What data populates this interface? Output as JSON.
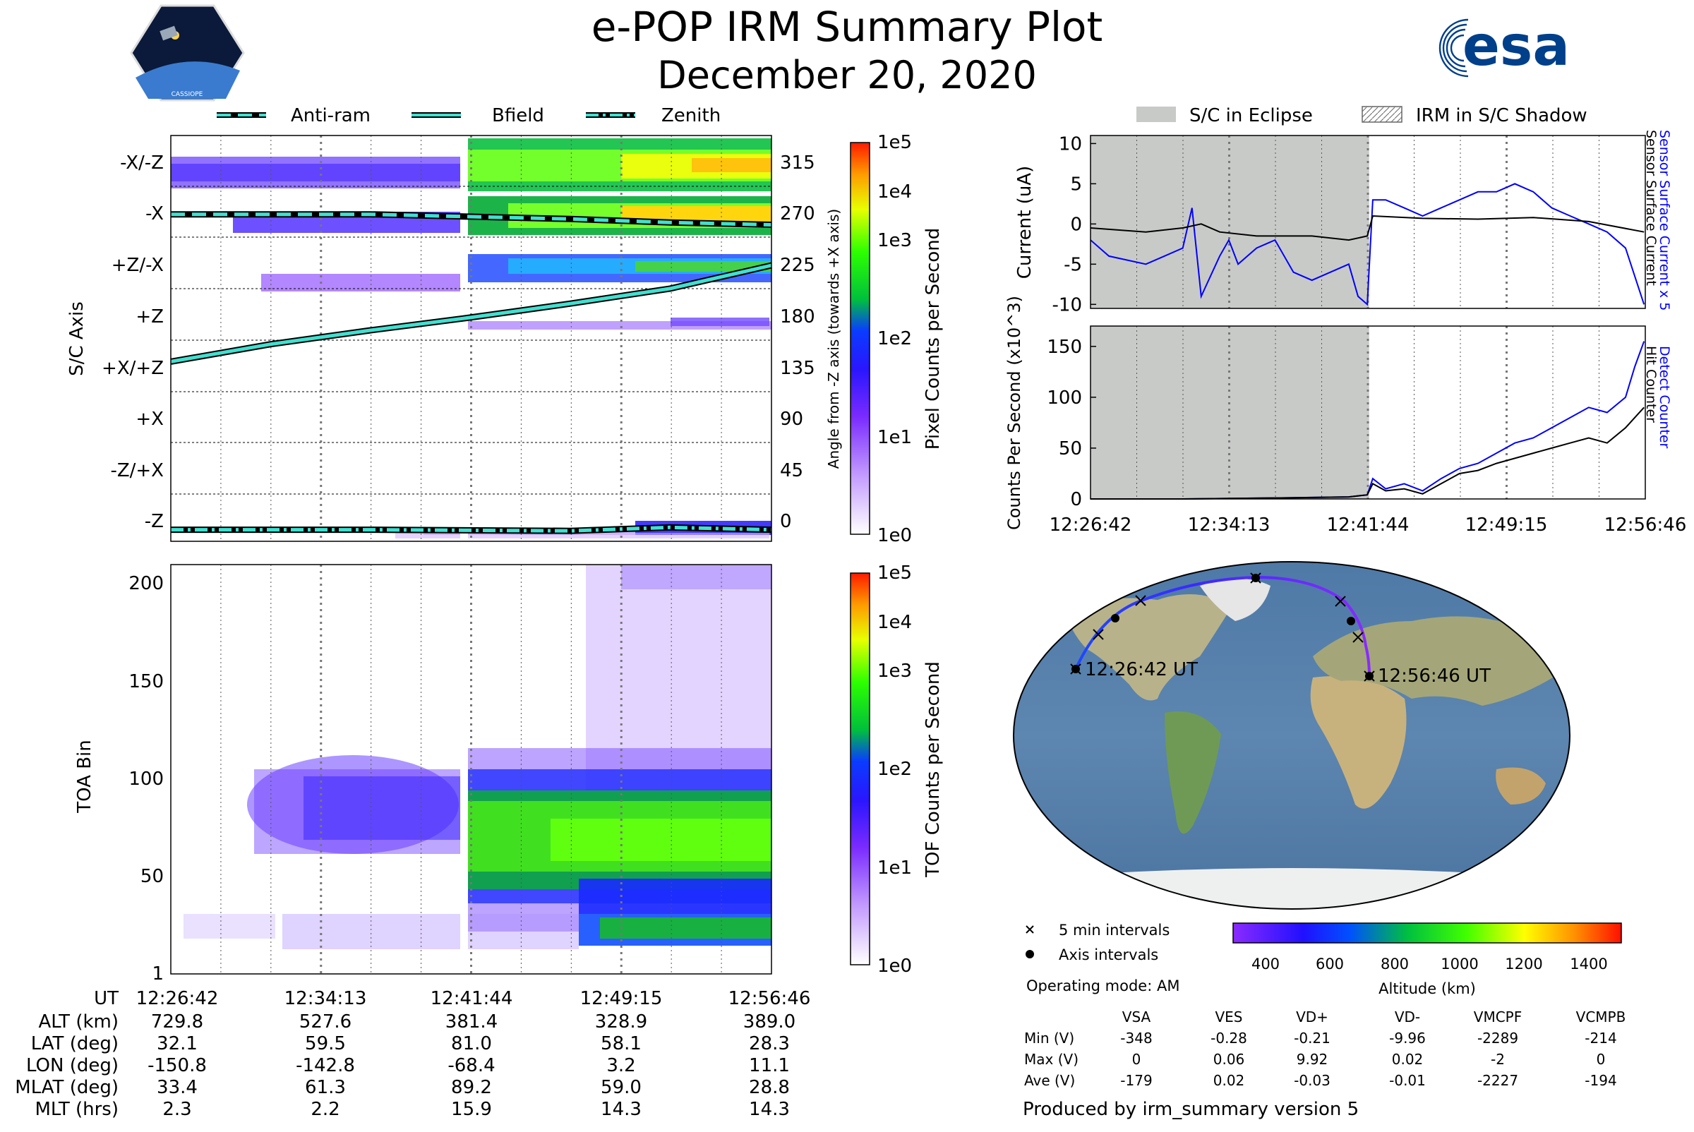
{
  "header": {
    "title": "e-POP IRM Summary Plot",
    "date": "December 20, 2020",
    "cassiope_logo_text": "CASSIOPE",
    "esa_logo_text": "esa"
  },
  "legend_top_left": [
    {
      "label": "Anti-ram",
      "style": "dashed"
    },
    {
      "label": "Bfield",
      "style": "solid"
    },
    {
      "label": "Zenith",
      "style": "dashdot"
    }
  ],
  "legend_top_right": [
    {
      "label": "S/C in Eclipse"
    },
    {
      "label": "IRM in S/C Shadow"
    }
  ],
  "colors": {
    "trace_fill": "#40e0d0",
    "eclipse_gray": "#c8cac8",
    "blue_series": "#0000ff",
    "black_series": "#000000",
    "track": "#6a2bff"
  },
  "colorbar_labels": {
    "pixel": "Pixel Counts per Second",
    "tof": "TOF Counts per Second",
    "ticks": [
      "1e0",
      "1e1",
      "1e2",
      "1e3",
      "1e4",
      "1e5"
    ]
  },
  "altitude_colorbar": {
    "label": "Altitude (km)",
    "ticks": [
      "400",
      "600",
      "800",
      "1000",
      "1200",
      "1400"
    ],
    "range": [
      300,
      1500
    ]
  },
  "time_ticks": [
    "12:26:42",
    "12:34:13",
    "12:41:44",
    "12:49:15",
    "12:56:46"
  ],
  "ephemeris": {
    "ut_label": "UT",
    "rows": [
      {
        "label": "ALT (km)",
        "values": [
          "729.8",
          "527.6",
          "381.4",
          "328.9",
          "389.0"
        ]
      },
      {
        "label": "LAT (deg)",
        "values": [
          "32.1",
          "59.5",
          "81.0",
          "58.1",
          "28.3"
        ]
      },
      {
        "label": "LON (deg)",
        "values": [
          "-150.8",
          "-142.8",
          "-68.4",
          "3.2",
          "11.1"
        ]
      },
      {
        "label": "MLAT (deg)",
        "values": [
          "33.4",
          "61.3",
          "89.2",
          "59.0",
          "28.8"
        ]
      },
      {
        "label": "MLT (hrs)",
        "values": [
          "2.3",
          "2.2",
          "15.9",
          "14.3",
          "14.3"
        ]
      }
    ]
  },
  "map": {
    "start_label": "12:26:42 UT",
    "end_label": "12:56:46 UT",
    "legend_5min": "5 min intervals",
    "legend_axis": "Axis intervals",
    "operating_mode": "Operating mode: AM"
  },
  "voltage_table": {
    "columns": [
      "VSA",
      "VES",
      "VD+",
      "VD-",
      "VMCPF",
      "VCMPB"
    ],
    "rows": [
      {
        "label": "Min (V)",
        "values": [
          "-348",
          "-0.28",
          "-0.21",
          "-9.96",
          "-2289",
          "-214"
        ]
      },
      {
        "label": "Max (V)",
        "values": [
          "0",
          "0.06",
          "9.92",
          "0.02",
          "-2",
          "0"
        ]
      },
      {
        "label": "Ave (V)",
        "values": [
          "-179",
          "0.02",
          "-0.03",
          "-0.01",
          "-2227",
          "-194"
        ]
      }
    ]
  },
  "footer": "Produced by irm_summary version 5",
  "chart_data": [
    {
      "type": "heatmap",
      "name": "pixel-spectrogram",
      "ylabel": "S/C Axis",
      "right_ylabel": "Angle from -Z axis (towards +X axis)",
      "categories": [
        "-X/-Z",
        "-X",
        "+Z/-X",
        "+Z",
        "+X/+Z",
        "+X",
        "-Z/+X",
        "-Z"
      ],
      "right_ticks": [
        315,
        270,
        225,
        180,
        135,
        90,
        45,
        0
      ],
      "ylim": [
        -10,
        340
      ],
      "xlim_minutes": [
        0,
        30.07
      ],
      "lines": [
        {
          "name": "Anti-ram",
          "t": [
            0,
            10,
            20,
            25,
            30.07
          ],
          "angle": [
            272,
            272,
            268,
            265,
            263
          ]
        },
        {
          "name": "Bfield",
          "t": [
            0,
            5,
            10,
            15,
            20,
            25,
            30.07
          ],
          "angle": [
            145,
            160,
            172,
            183,
            195,
            208,
            228
          ]
        },
        {
          "name": "Zenith",
          "t": [
            0,
            10,
            20,
            25,
            30.07
          ],
          "angle": [
            0,
            0,
            -1,
            2,
            0
          ]
        }
      ]
    },
    {
      "type": "heatmap",
      "name": "tof-spectrogram",
      "ylabel": "TOA Bin",
      "yticks": [
        1,
        50,
        100,
        150,
        200
      ],
      "ylim": [
        1,
        210
      ],
      "xlim_minutes": [
        0,
        30.07
      ]
    },
    {
      "type": "line",
      "name": "current",
      "ylabel": "Current (uA)",
      "right_label_blue": "Sensor Surface Current x 5",
      "right_label_black": "Sensor Surface Current",
      "yticks": [
        10,
        5,
        0,
        -5,
        -10
      ],
      "ylim": [
        -10.5,
        11
      ],
      "eclipse_end_minutes": 15.1,
      "series": [
        {
          "name": "Sensor Surface Current x 5",
          "color": "#0000ff",
          "t": [
            0,
            1,
            2,
            3,
            4,
            5,
            5.5,
            6,
            7,
            7.5,
            8,
            9,
            10,
            11,
            12,
            13,
            14,
            14.5,
            15,
            15.3,
            16,
            17,
            18,
            19,
            20,
            21,
            22,
            23,
            24,
            25,
            26,
            27,
            28,
            29,
            30
          ],
          "values": [
            -2,
            -4,
            -4.5,
            -5,
            -4,
            -3,
            2,
            -9,
            -4,
            -2,
            -5,
            -3,
            -2,
            -6,
            -7,
            -6,
            -5,
            -9,
            -10,
            3,
            3,
            2,
            1,
            2,
            3,
            4,
            4,
            5,
            4,
            2,
            1,
            0,
            -1,
            -3,
            -10
          ]
        },
        {
          "name": "Sensor Surface Current",
          "color": "#000000",
          "t": [
            0,
            3,
            5,
            6,
            7,
            9,
            12,
            14,
            15,
            15.3,
            18,
            21,
            24,
            27,
            30
          ],
          "values": [
            -0.5,
            -1,
            -0.5,
            0,
            -1,
            -1.5,
            -1.5,
            -2,
            -1.5,
            1,
            0.7,
            0.6,
            0.8,
            0.3,
            -1
          ]
        }
      ]
    },
    {
      "type": "line",
      "name": "counts",
      "ylabel": "Counts Per Second (x10^3)",
      "right_label_blue": "Detect Counter",
      "right_label_black": "Hit Counter",
      "yticks": [
        0,
        50,
        100,
        150
      ],
      "ylim": [
        0,
        170
      ],
      "eclipse_end_minutes": 15.1,
      "series": [
        {
          "name": "Detect Counter",
          "color": "#0000ff",
          "t": [
            0,
            5,
            10,
            14,
            15,
            15.3,
            16,
            17,
            18,
            19,
            20,
            21,
            22,
            23,
            24,
            25,
            26,
            27,
            28,
            29,
            29.5,
            30
          ],
          "values": [
            0,
            0,
            1,
            2,
            4,
            20,
            10,
            15,
            8,
            20,
            30,
            35,
            45,
            55,
            60,
            70,
            80,
            90,
            85,
            100,
            130,
            155
          ]
        },
        {
          "name": "Hit Counter",
          "color": "#000000",
          "t": [
            0,
            5,
            10,
            14,
            15,
            15.3,
            16,
            17,
            18,
            19,
            20,
            21,
            22,
            23,
            24,
            25,
            26,
            27,
            28,
            29,
            29.5,
            30
          ],
          "values": [
            0,
            0,
            1,
            2,
            4,
            15,
            8,
            10,
            5,
            15,
            25,
            28,
            35,
            40,
            45,
            50,
            55,
            60,
            55,
            70,
            80,
            90
          ]
        }
      ]
    }
  ]
}
